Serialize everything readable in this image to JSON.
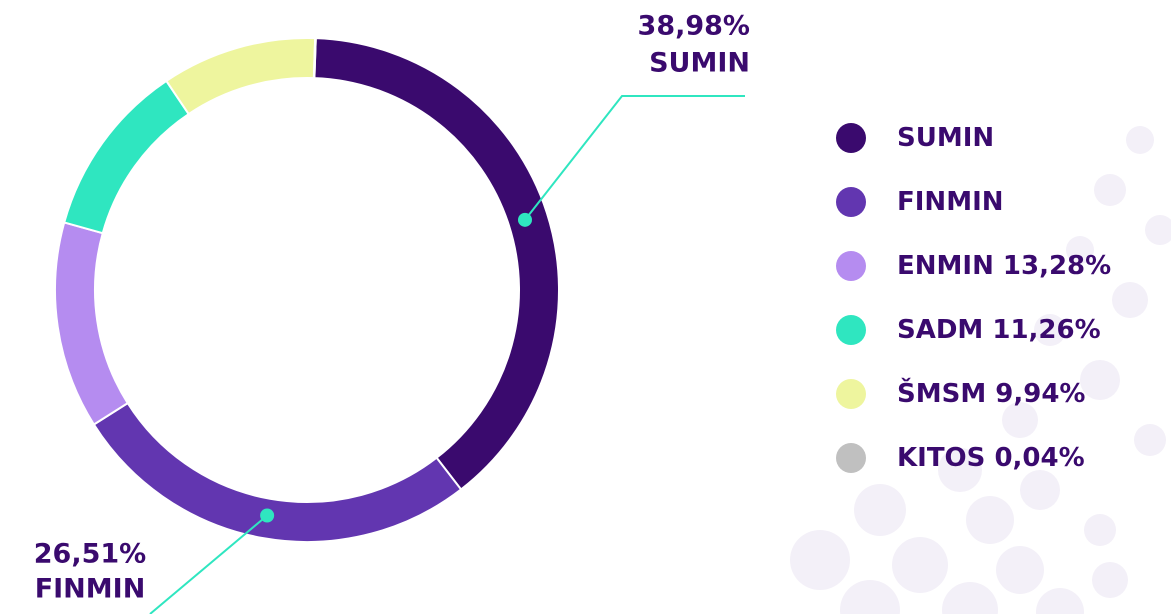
{
  "chart_data": {
    "type": "donut",
    "categories": [
      "SUMIN",
      "FINMIN",
      "ENMIN",
      "SADM",
      "ŠMSM",
      "KITOS"
    ],
    "values": [
      38.98,
      26.51,
      13.28,
      11.26,
      9.94,
      0.04
    ],
    "value_labels": [
      "38,98%",
      "26,51%",
      "13,28%",
      "11,26%",
      "9,94%",
      "0,04%"
    ],
    "colors": [
      "#3a0a6e",
      "#6236b0",
      "#b58cf0",
      "#2fe6c0",
      "#eef59e",
      "#c0c0c0"
    ],
    "legend": "right"
  }
}
